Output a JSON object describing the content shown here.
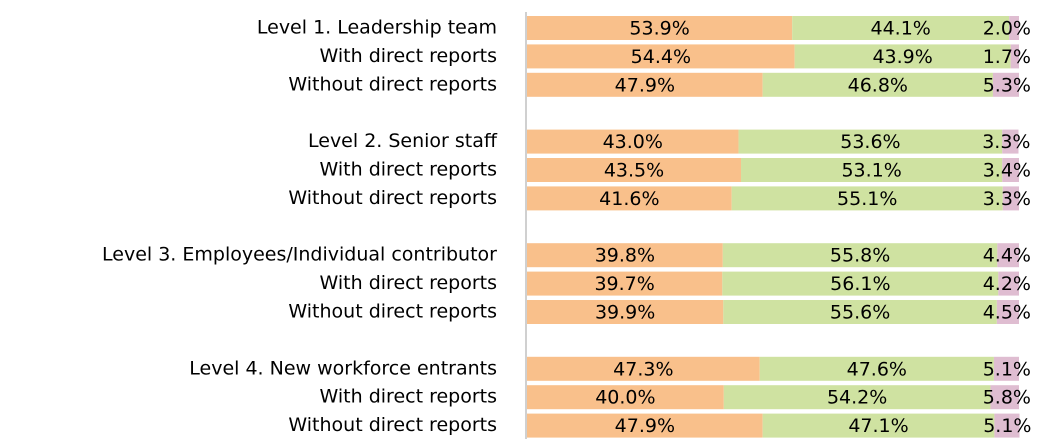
{
  "chart_data": {
    "type": "stacked-bar",
    "orientation": "horizontal",
    "categories": [
      "Level 1. Leadership team",
      "With direct reports",
      "Without direct reports",
      null,
      "Level 2. Senior staff",
      "With direct reports",
      "Without direct reports",
      null,
      "Level 3. Employees/Individual contributor",
      "With direct reports",
      "Without direct reports",
      null,
      "Level 4. New workforce entrants",
      "With direct reports",
      "Without direct reports"
    ],
    "xlim": [
      0,
      100
    ],
    "series": [
      {
        "color": "#f9c08b",
        "values": [
          53.9,
          54.4,
          47.9,
          null,
          43.0,
          43.5,
          41.6,
          null,
          39.8,
          39.7,
          39.9,
          null,
          47.3,
          40.0,
          47.9
        ],
        "value_labels": [
          "53.9%",
          "54.4%",
          "47.9%",
          null,
          "43.0%",
          "43.5%",
          "41.6%",
          null,
          "39.8%",
          "39.7%",
          "39.9%",
          null,
          "47.3%",
          "40.0%",
          "47.9%"
        ]
      },
      {
        "color": "#cfe2a1",
        "values": [
          44.1,
          43.9,
          46.8,
          null,
          53.6,
          53.1,
          55.1,
          null,
          55.8,
          56.1,
          55.6,
          null,
          47.6,
          54.2,
          47.1
        ],
        "value_labels": [
          "44.1%",
          "43.9%",
          "46.8%",
          null,
          "53.6%",
          "53.1%",
          "55.1%",
          null,
          "55.8%",
          "56.1%",
          "55.6%",
          null,
          "47.6%",
          "54.2%",
          "47.1%"
        ]
      },
      {
        "color": "#dfbdd1",
        "values": [
          2.0,
          1.7,
          5.3,
          null,
          3.3,
          3.4,
          3.3,
          null,
          4.4,
          4.2,
          4.5,
          null,
          5.1,
          5.8,
          5.1
        ],
        "value_labels": [
          "2.0%",
          "1.7%",
          "5.3%",
          null,
          "3.3%",
          "3.4%",
          "3.3%",
          null,
          "4.4%",
          "4.2%",
          "4.5%",
          null,
          "5.1%",
          "5.8%",
          "5.1%"
        ]
      }
    ]
  }
}
